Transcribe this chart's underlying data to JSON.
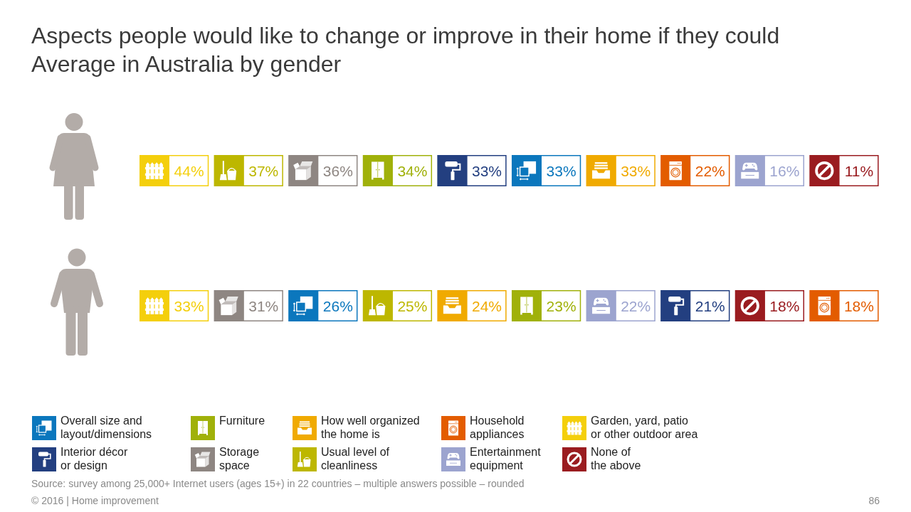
{
  "chart_data": [
    {
      "type": "other",
      "title": "Aspects people would like to change or improve in their home if they could",
      "subtitle": "Average in Australia by gender",
      "categories": [
        null,
        null,
        null,
        null,
        null,
        null,
        null,
        null,
        null,
        null
      ],
      "values": [
        44,
        37,
        36,
        34,
        33,
        33,
        33,
        22,
        16,
        11
      ],
      "value_labels": [
        "44%",
        "37%",
        "36%",
        "34%",
        "33%",
        "33%",
        "33%",
        "22%",
        "16%",
        "11%"
      ],
      "colors": [
        "#f4cf0c",
        "#bdb700",
        "#8e8682",
        "#a0b10a",
        "#233f80",
        "#0b77bd",
        "#f0aa00",
        "#e35c00",
        "#9ca4cf",
        "#9a1c20"
      ]
    },
    {
      "type": "other",
      "categories": [
        null,
        null,
        null,
        null,
        null,
        null,
        null,
        null,
        null,
        null
      ],
      "values": [
        33,
        31,
        26,
        25,
        24,
        23,
        22,
        21,
        18,
        18
      ],
      "value_labels": [
        "33%",
        "31%",
        "26%",
        "25%",
        "24%",
        "23%",
        "22%",
        "21%",
        "18%",
        "18%"
      ],
      "colors": [
        "#f4cf0c",
        "#8e8682",
        "#0b77bd",
        "#bdb700",
        "#f0aa00",
        "#a0b10a",
        "#9ca4cf",
        "#233f80",
        "#9a1c20",
        "#e35c00"
      ]
    },
    {
      "type": "other",
      "categories": [
        "Overall size and layout/dimensions",
        "Interior décor or design",
        "Furniture",
        "Storage space",
        "How well organized the home is",
        "Usual level of cleanliness",
        "Household appliances",
        "Entertainment equipment",
        "Garden, yard, patio or other outdoor area",
        "None of the above"
      ],
      "colors": [
        "#0b77bd",
        "#233f80",
        "#a0b10a",
        "#8e8682",
        "#f0aa00",
        "#bdb700",
        "#e35c00",
        "#9ca4cf",
        "#f4cf0c",
        "#9a1c20"
      ],
      "annotations": [
        "Source: survey among 25,000+ Internet users (ages 15+) in 22 countries – multiple answers possible – rounded",
        "© 2016 | Home improvement",
        "86"
      ]
    }
  ]
}
